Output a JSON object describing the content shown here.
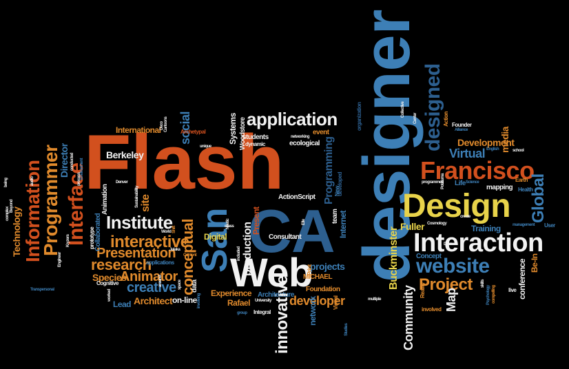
{
  "palette": {
    "background": "#000000",
    "orange": "#d2501e",
    "light_orange": "#e08a2c",
    "blue": "#3d7fb6",
    "dark_blue": "#2d5f8f",
    "yellow": "#e8d34a",
    "white": "#f2f2f2",
    "grey": "#8a8a8a"
  },
  "words": [
    {
      "text": "designer",
      "color": "#3d7fb6",
      "rot": true
    },
    {
      "text": "Flash",
      "color": "#d2501e",
      "rot": false
    },
    {
      "text": "CA",
      "color": "#2d5f8f",
      "rot": false
    },
    {
      "text": "Web",
      "color": "#f2f2f2",
      "rot": false
    },
    {
      "text": "San",
      "color": "#3d7fb6",
      "rot": true
    },
    {
      "text": "Interaction",
      "color": "#f2f2f2",
      "rot": false
    },
    {
      "text": "Design",
      "color": "#e8d34a",
      "rot": false
    },
    {
      "text": "Francisco",
      "color": "#d2501e",
      "rot": false
    },
    {
      "text": "designed",
      "color": "#2d5f8f",
      "rot": true
    },
    {
      "text": "application",
      "color": "#f2f2f2",
      "rot": false
    },
    {
      "text": "Interface",
      "color": "#d2501e",
      "rot": true
    },
    {
      "text": "Information",
      "color": "#d2501e",
      "rot": true
    },
    {
      "text": "Programmer",
      "color": "#e08a2c",
      "rot": true
    },
    {
      "text": "website",
      "color": "#3d7fb6",
      "rot": false
    },
    {
      "text": "Project",
      "color": "#e08a2c",
      "rot": false
    },
    {
      "text": "Institute",
      "color": "#f2f2f2",
      "rot": false
    },
    {
      "text": "interactive",
      "color": "#e08a2c",
      "rot": false
    },
    {
      "text": "conceptual",
      "color": "#e08a2c",
      "rot": true
    },
    {
      "text": "Presentation",
      "color": "#e08a2c",
      "rot": false
    },
    {
      "text": "research",
      "color": "#e08a2c",
      "rot": false
    },
    {
      "text": "Animator",
      "color": "#e08a2c",
      "rot": false
    },
    {
      "text": "creative",
      "color": "#3d7fb6",
      "rot": false
    },
    {
      "text": "innovative",
      "color": "#f2f2f2",
      "rot": true
    },
    {
      "text": "developer",
      "color": "#e08a2c",
      "rot": false
    },
    {
      "text": "Global",
      "color": "#3d7fb6",
      "rot": true
    },
    {
      "text": "Virtual",
      "color": "#3d7fb6",
      "rot": false
    },
    {
      "text": "Development",
      "color": "#e08a2c",
      "rot": false
    },
    {
      "text": "Fuller",
      "color": "#e8d34a",
      "rot": false
    },
    {
      "text": "Buckminster",
      "color": "#e8d34a",
      "rot": true
    },
    {
      "text": "Community",
      "color": "#f2f2f2",
      "rot": true
    },
    {
      "text": "Map",
      "color": "#f2f2f2",
      "rot": true
    },
    {
      "text": "production",
      "color": "#f2f2f2",
      "rot": true
    },
    {
      "text": "Technology",
      "color": "#e08a2c",
      "rot": true
    },
    {
      "text": "social",
      "color": "#3d7fb6",
      "rot": true
    },
    {
      "text": "Director",
      "color": "#3d7fb6",
      "rot": true
    },
    {
      "text": "site",
      "color": "#e08a2c",
      "rot": true
    },
    {
      "text": "Species",
      "color": "#e08a2c",
      "rot": false
    },
    {
      "text": "Architect",
      "color": "#e08a2c",
      "rot": false
    },
    {
      "text": "Lead",
      "color": "#3d7fb6",
      "rot": false
    },
    {
      "text": "on-line",
      "color": "#f2f2f2",
      "rot": false
    },
    {
      "text": "Digital",
      "color": "#e8d34a",
      "rot": false
    },
    {
      "text": "Experience",
      "color": "#e08a2c",
      "rot": false
    },
    {
      "text": "Rafael",
      "color": "#e08a2c",
      "rot": false
    },
    {
      "text": "projects",
      "color": "#3d7fb6",
      "rot": false
    },
    {
      "text": "Programming",
      "color": "#2d5f8f",
      "rot": true
    },
    {
      "text": "Berkeley",
      "color": "#f2f2f2",
      "rot": false
    },
    {
      "text": "International",
      "color": "#e08a2c",
      "rot": false
    },
    {
      "text": "Systems",
      "color": "#f2f2f2",
      "rot": true
    },
    {
      "text": "Woodstore",
      "color": "#f2f2f2",
      "rot": true
    },
    {
      "text": "students",
      "color": "#f2f2f2",
      "rot": false
    },
    {
      "text": "dynamic",
      "color": "#f2f2f2",
      "rot": false
    },
    {
      "text": "event",
      "color": "#e08a2c",
      "rot": false
    },
    {
      "text": "ecological",
      "color": "#f2f2f2",
      "rot": false
    },
    {
      "text": "Archetypal",
      "color": "#d2501e",
      "rot": false
    },
    {
      "text": "Animation",
      "color": "#f2f2f2",
      "rot": true
    },
    {
      "text": "Collaborated",
      "color": "#3d7fb6",
      "rot": true
    },
    {
      "text": "prototype",
      "color": "#f2f2f2",
      "rot": true
    },
    {
      "text": "data",
      "color": "#f2f2f2",
      "rot": true
    },
    {
      "text": "Integral",
      "color": "#f2f2f2",
      "rot": false
    },
    {
      "text": "MICHAEL",
      "color": "#e08a2c",
      "rot": false
    },
    {
      "text": "Foundation",
      "color": "#e08a2c",
      "rot": false
    },
    {
      "text": "Architecture",
      "color": "#3d7fb6",
      "rot": false
    },
    {
      "text": "Internet",
      "color": "#3d7fb6",
      "rot": true
    },
    {
      "text": "team",
      "color": "#f2f2f2",
      "rot": true
    },
    {
      "text": "Consultant",
      "color": "#f2f2f2",
      "rot": false
    },
    {
      "text": "ActionScript",
      "color": "#f2f2f2",
      "rot": false
    },
    {
      "text": "Present",
      "color": "#d2501e",
      "rot": true
    },
    {
      "text": "network",
      "color": "#3d7fb6",
      "rot": true
    },
    {
      "text": "Training",
      "color": "#3d7fb6",
      "rot": false
    },
    {
      "text": "Concept",
      "color": "#3d7fb6",
      "rot": false
    },
    {
      "text": "Be-In",
      "color": "#e08a2c",
      "rot": true
    },
    {
      "text": "conference",
      "color": "#f2f2f2",
      "rot": true
    },
    {
      "text": "mapping",
      "color": "#f2f2f2",
      "rot": false
    },
    {
      "text": "Life",
      "color": "#3d7fb6",
      "rot": false
    },
    {
      "text": "media",
      "color": "#e08a2c",
      "rot": true
    },
    {
      "text": "Founder",
      "color": "#f2f2f2",
      "rot": false
    },
    {
      "text": "Earth",
      "color": "#e08a2c",
      "rot": false
    },
    {
      "text": "Health",
      "color": "#3d7fb6",
      "rot": false
    },
    {
      "text": "User",
      "color": "#3d7fb6",
      "rot": false
    },
    {
      "text": "live",
      "color": "#f2f2f2",
      "rot": false
    },
    {
      "text": "applications",
      "color": "#3d7fb6",
      "rot": false
    },
    {
      "text": "Cognitive",
      "color": "#f2f2f2",
      "rot": false
    },
    {
      "text": "Transpersonal",
      "color": "#3d7fb6",
      "rot": false
    },
    {
      "text": "Content",
      "color": "#e08a2c",
      "rot": false
    },
    {
      "text": "World",
      "color": "#f2f2f2",
      "rot": false
    },
    {
      "text": "involved",
      "color": "#e08a2c",
      "rot": false
    },
    {
      "text": "Reality",
      "color": "#e08a2c",
      "rot": true
    },
    {
      "text": "Action",
      "color": "#e08a2c",
      "rot": true
    },
    {
      "text": "Alliance",
      "color": "#3d7fb6",
      "rot": false
    },
    {
      "text": "Center",
      "color": "#f2f2f2",
      "rot": true
    },
    {
      "text": "Collective",
      "color": "#f2f2f2",
      "rot": true
    },
    {
      "text": "organization",
      "color": "#2d5f8f",
      "rot": true
    },
    {
      "text": "developed",
      "color": "#2d5f8f",
      "rot": true
    },
    {
      "text": "New",
      "color": "#3d7fb6",
      "rot": true
    },
    {
      "text": "Print",
      "color": "#e08a2c",
      "rot": true
    },
    {
      "text": "Visual",
      "color": "#e08a2c",
      "rot": true
    },
    {
      "text": "Studies",
      "color": "#3d7fb6",
      "rot": true
    },
    {
      "text": "multiple",
      "color": "#f2f2f2",
      "rot": false
    },
    {
      "text": "University",
      "color": "#f2f2f2",
      "rot": false
    },
    {
      "text": "group",
      "color": "#3d7fb6",
      "rot": false
    },
    {
      "text": "included",
      "color": "#f2f2f2",
      "rot": true
    },
    {
      "text": "Engineer",
      "color": "#f2f2f2",
      "rot": true
    },
    {
      "text": "complex",
      "color": "#f2f2f2",
      "rot": true
    },
    {
      "text": "programmed",
      "color": "#f2f2f2",
      "rot": false
    },
    {
      "text": "Cosmology",
      "color": "#f2f2f2",
      "rot": false
    },
    {
      "text": "management",
      "color": "#3d7fb6",
      "rot": false
    },
    {
      "text": "school",
      "color": "#f2f2f2",
      "rot": false
    },
    {
      "text": "Science",
      "color": "#3d7fb6",
      "rot": false
    },
    {
      "text": "Psychology",
      "color": "#3d7fb6",
      "rot": true
    },
    {
      "text": "compelling",
      "color": "#e08a2c",
      "rot": true
    },
    {
      "text": "Environment",
      "color": "#3d7fb6",
      "rot": true
    },
    {
      "text": "networking",
      "color": "#f2f2f2",
      "rot": false
    },
    {
      "text": "involving",
      "color": "#3d7fb6",
      "rot": true
    },
    {
      "text": "video",
      "color": "#f2f2f2",
      "rot": false
    },
    {
      "text": "worked",
      "color": "#f2f2f2",
      "rot": true
    },
    {
      "text": "around",
      "color": "#f2f2f2",
      "rot": true
    },
    {
      "text": "Sustainability",
      "color": "#f2f2f2",
      "rot": true
    },
    {
      "text": "create",
      "color": "#f2f2f2",
      "rot": false
    },
    {
      "text": "Dave",
      "color": "#f2f2f2",
      "rot": false
    },
    {
      "text": "Shift",
      "color": "#e08a2c",
      "rot": true
    },
    {
      "text": "Jalaka",
      "color": "#f2f2f2",
      "rot": false
    },
    {
      "text": "conducted",
      "color": "#f2f2f2",
      "rot": true
    },
    {
      "text": "being",
      "color": "#f2f2f2",
      "rot": true
    },
    {
      "text": "audio",
      "color": "#f2f2f2",
      "rot": true
    },
    {
      "text": "unique",
      "color": "#f2f2f2",
      "rot": false
    },
    {
      "text": "Noetic",
      "color": "#f2f2f2",
      "rot": true
    },
    {
      "text": "mass",
      "color": "#f2f2f2",
      "rot": false
    },
    {
      "text": "space",
      "color": "#f2f2f2",
      "rot": true
    },
    {
      "text": "Elle",
      "color": "#f2f2f2",
      "rot": true
    },
    {
      "text": "Potaluma",
      "color": "#f2f2f2",
      "rot": true
    },
    {
      "text": "Beyond",
      "color": "#f2f2f2",
      "rot": true
    },
    {
      "text": "Denver",
      "color": "#f2f2f2",
      "rot": false
    },
    {
      "text": "Kryzers",
      "color": "#f2f2f2",
      "rot": true
    },
    {
      "text": "skills",
      "color": "#f2f2f2",
      "rot": true
    },
    {
      "text": "process",
      "color": "#f2f2f2",
      "rot": true
    },
    {
      "text": "English",
      "color": "#3d7fb6",
      "rot": false
    },
    {
      "text": "Cartoons",
      "color": "#f2f2f2",
      "rot": true
    },
    {
      "text": "Deco",
      "color": "#f2f2f2",
      "rot": true
    }
  ]
}
